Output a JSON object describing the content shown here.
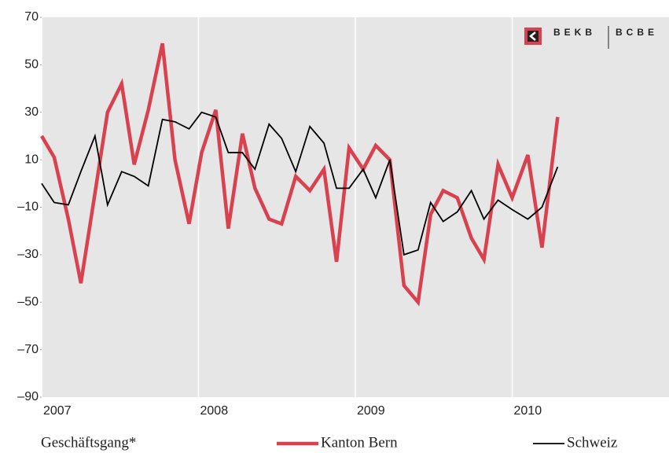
{
  "chart_data": {
    "type": "line",
    "caption": "Geschäftsgang*",
    "logo": [
      "BEKB",
      "BCBE"
    ],
    "x": [
      2007.0,
      2007.08,
      2007.17,
      2007.25,
      2007.34,
      2007.42,
      2007.51,
      2007.59,
      2007.68,
      2007.77,
      2007.85,
      2007.94,
      2008.02,
      2008.11,
      2008.19,
      2008.28,
      2008.36,
      2008.45,
      2008.53,
      2008.62,
      2008.71,
      2008.8,
      2008.88,
      2008.96,
      2009.05,
      2009.13,
      2009.22,
      2009.31,
      2009.4,
      2009.48,
      2009.56,
      2009.65,
      2009.74,
      2009.82,
      2009.91,
      2010.0,
      2010.1,
      2010.19,
      2010.29
    ],
    "series": [
      {
        "name": "Kanton Bern",
        "color": "#d9414f",
        "width": 4.5,
        "values": [
          20,
          11,
          -15,
          -42,
          -4,
          30,
          42,
          8,
          31,
          59,
          10,
          -17,
          13,
          31,
          -19,
          21,
          -2,
          -15,
          -17,
          3,
          -3,
          6,
          -33,
          15,
          6,
          16,
          10,
          -43,
          -50,
          -13,
          -3,
          -6,
          -23,
          -32,
          8,
          -6,
          12,
          -27,
          28
        ]
      },
      {
        "name": "Schweiz",
        "color": "#000000",
        "width": 1.8,
        "values": [
          0,
          -8,
          -9,
          5,
          20,
          -9,
          5,
          3,
          -1,
          27,
          26,
          23,
          30,
          28,
          13,
          13,
          6,
          25,
          19,
          5,
          24,
          17,
          -2,
          -2,
          6,
          -6,
          10,
          -30,
          -28,
          -8,
          -16,
          -12,
          -3,
          -15,
          -7,
          -11,
          -15,
          -10,
          7
        ]
      }
    ],
    "xlim": [
      2007,
      2011
    ],
    "xticks": [
      2007,
      2008,
      2009,
      2010
    ],
    "ylim": [
      -90,
      70
    ],
    "yticks": [
      {
        "value": -90,
        "label": "–90"
      },
      {
        "value": -70,
        "label": "–70"
      },
      {
        "value": -50,
        "label": "–50"
      },
      {
        "value": -30,
        "label": "–30"
      },
      {
        "value": -10,
        "label": "–10"
      },
      10,
      30,
      50,
      70
    ],
    "grid": true
  }
}
